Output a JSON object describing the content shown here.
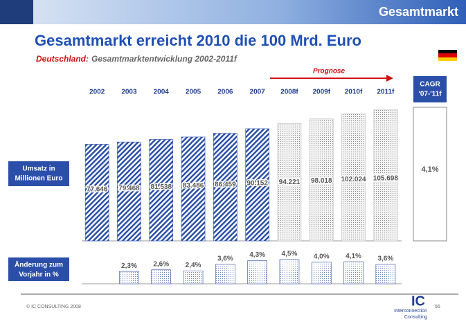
{
  "header": {
    "title": "Gesamtmarkt"
  },
  "title": "Gesamtmarkt erreicht 2010 die 100 Mrd. Euro",
  "subtitle": {
    "region": "Deutschland:",
    "text": "Gesamtmarktentwicklung 2002-2011f"
  },
  "forecast_label": "Prognose",
  "cagr": {
    "label_1": "CAGR",
    "label_2": "'07-'11f",
    "value": "4,1%"
  },
  "row_labels": {
    "revenue": [
      "Umsatz in",
      "Millionen Euro"
    ],
    "change": [
      "Änderung zum",
      "Vorjahr in %"
    ]
  },
  "chart_data": [
    {
      "type": "bar",
      "categories": [
        "2002",
        "2003",
        "2004",
        "2005",
        "2006",
        "2007",
        "2008f",
        "2009f",
        "2010f",
        "2011f"
      ],
      "values": [
        77646,
        79468,
        81538,
        83486,
        86459,
        90152,
        94221,
        98018,
        102024,
        105698
      ],
      "value_labels": [
        "77.646",
        "79.468",
        "81.538",
        "83.486",
        "86.459",
        "90.152",
        "94.221",
        "98.018",
        "102.024",
        "105.698"
      ],
      "patterns": [
        "hatched",
        "hatched",
        "hatched",
        "hatched",
        "hatched",
        "hatched",
        "dotted",
        "dotted",
        "dotted",
        "dotted"
      ],
      "color": "#2b4fa8"
    },
    {
      "type": "bar",
      "values": [
        null,
        2.3,
        2.6,
        2.4,
        3.6,
        4.3,
        4.5,
        4.0,
        4.1,
        3.6
      ],
      "value_labels": [
        null,
        "2,3%",
        "2,6%",
        "2,4%",
        "3,6%",
        "4,3%",
        "4,5%",
        "4,0%",
        "4,1%",
        "3,6%"
      ],
      "color": "#2b4fa8"
    }
  ],
  "footer": {
    "copyright": "© IC CONSULTING 2008",
    "page": "56",
    "logo": "IC",
    "company_1": "Interconnection",
    "company_2": "Consulting"
  }
}
